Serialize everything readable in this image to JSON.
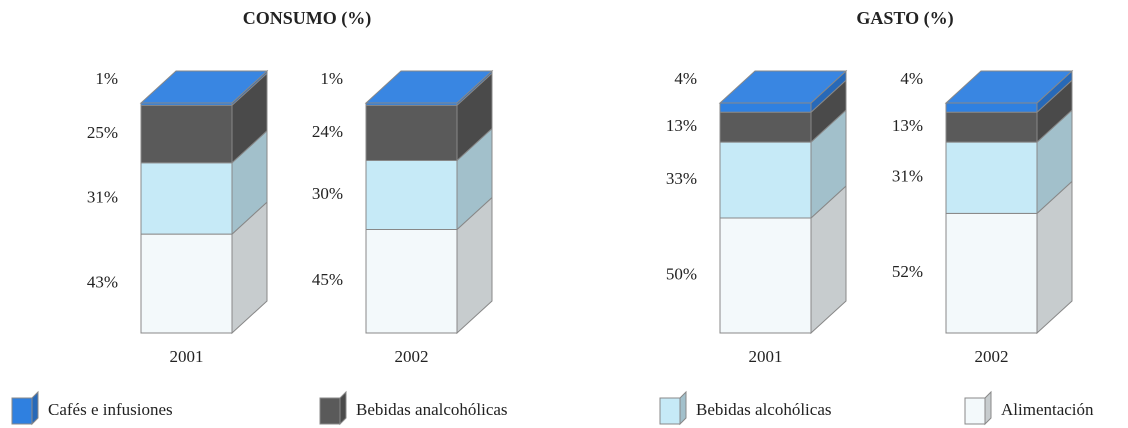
{
  "chart_data": [
    {
      "type": "stacked-bar-3d",
      "title": "CONSUMO (%)",
      "categories": [
        "2001",
        "2002"
      ],
      "ylim": [
        0,
        100
      ],
      "series": [
        {
          "values": [
            43,
            45
          ],
          "value_labels": [
            "43%",
            "45%"
          ]
        },
        {
          "values": [
            31,
            30
          ],
          "value_labels": [
            "31%",
            "30%"
          ]
        },
        {
          "values": [
            25,
            24
          ],
          "value_labels": [
            "25%",
            "24%"
          ]
        },
        {
          "values": [
            1,
            1
          ],
          "value_labels": [
            "1%",
            "1%"
          ]
        }
      ]
    },
    {
      "type": "stacked-bar-3d",
      "title": "GASTO (%)",
      "categories": [
        "2001",
        "2002"
      ],
      "ylim": [
        0,
        100
      ],
      "series": [
        {
          "values": [
            50,
            52
          ],
          "value_labels": [
            "50%",
            "52%"
          ]
        },
        {
          "values": [
            33,
            31
          ],
          "value_labels": [
            "33%",
            "31%"
          ]
        },
        {
          "values": [
            13,
            13
          ],
          "value_labels": [
            "13%",
            "13%"
          ]
        },
        {
          "values": [
            4,
            4
          ],
          "value_labels": [
            "4%",
            "4%"
          ]
        }
      ]
    }
  ],
  "legend": [
    {
      "name": "Alimentación",
      "color": "#f3f9fb"
    },
    {
      "name": "Bebidas alcohólicas",
      "color": "#c6eaf7"
    },
    {
      "name": "Bebidas analcohólicas",
      "color": "#5a5a5a"
    },
    {
      "name": "Cafés e infusiones",
      "color": "#2f80e0"
    }
  ]
}
